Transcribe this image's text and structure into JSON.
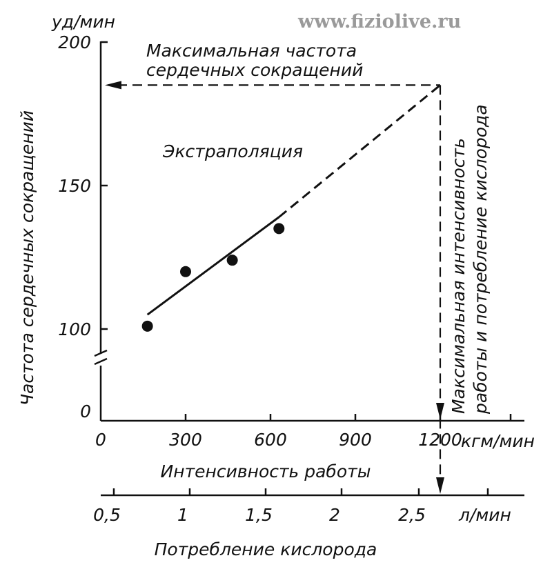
{
  "watermark": "www.fiziolive.ru",
  "chart_data": {
    "type": "scatter",
    "y_unit": "уд/мин",
    "ylabel": "Частота сердечных сокращений",
    "xlabel": "Интенсивность работы",
    "x_unit": "кгм/мин",
    "yticks": [
      0,
      100,
      150,
      200
    ],
    "xticks": [
      0,
      300,
      600,
      900,
      1200
    ],
    "ylim": [
      0,
      200
    ],
    "xlim": [
      0,
      1500
    ],
    "y_axis_break": true,
    "points": [
      {
        "x": 165,
        "y": 101
      },
      {
        "x": 300,
        "y": 120
      },
      {
        "x": 465,
        "y": 124
      },
      {
        "x": 630,
        "y": 135
      }
    ],
    "fit_line": {
      "x_start": 165,
      "y_start": 105,
      "x_end": 630,
      "y_end": 139
    },
    "extrapolation_line": {
      "x_start": 630,
      "y_start": 139,
      "x_end": 1200,
      "y_end": 185
    },
    "max_heart_rate_value": 185,
    "max_intensity_value": 1200,
    "annotations": {
      "max_heart_rate_line1": "Максимальная частота",
      "max_heart_rate_line2": "сердечных сокращений",
      "extrapolation": "Экстраполяция",
      "max_intensity_line1": "Максимальная интенсивность",
      "max_intensity_line2": "работы и потребление кислорода"
    },
    "secondary_axis": {
      "xlabel": "Потребление кислорода",
      "unit": "л/мин",
      "ticks": [
        "0,5",
        "1",
        "1,5",
        "2",
        "2,5"
      ]
    }
  }
}
